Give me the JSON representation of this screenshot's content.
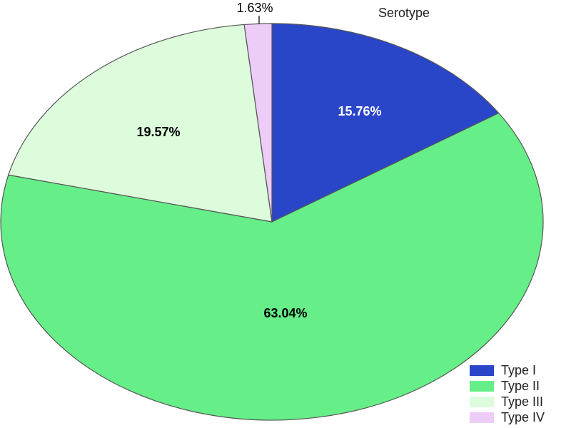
{
  "chart_data": {
    "type": "pie",
    "legend_title": "Serotype",
    "categories": [
      "Type I",
      "Type II",
      "Type III",
      "Type IV"
    ],
    "values": [
      15.76,
      63.04,
      19.57,
      1.63
    ],
    "labels": [
      "15.76%",
      "63.04%",
      "19.57%",
      "1.63%"
    ],
    "colors": [
      "#2a46c8",
      "#66ee88",
      "#dcfcdc",
      "#eeccf8"
    ],
    "label_colors": [
      "#ffffff",
      "#000000",
      "#000000",
      "#000000"
    ],
    "start_angle_deg": 0,
    "direction": "clockwise",
    "legend_position": "bottom-right"
  }
}
